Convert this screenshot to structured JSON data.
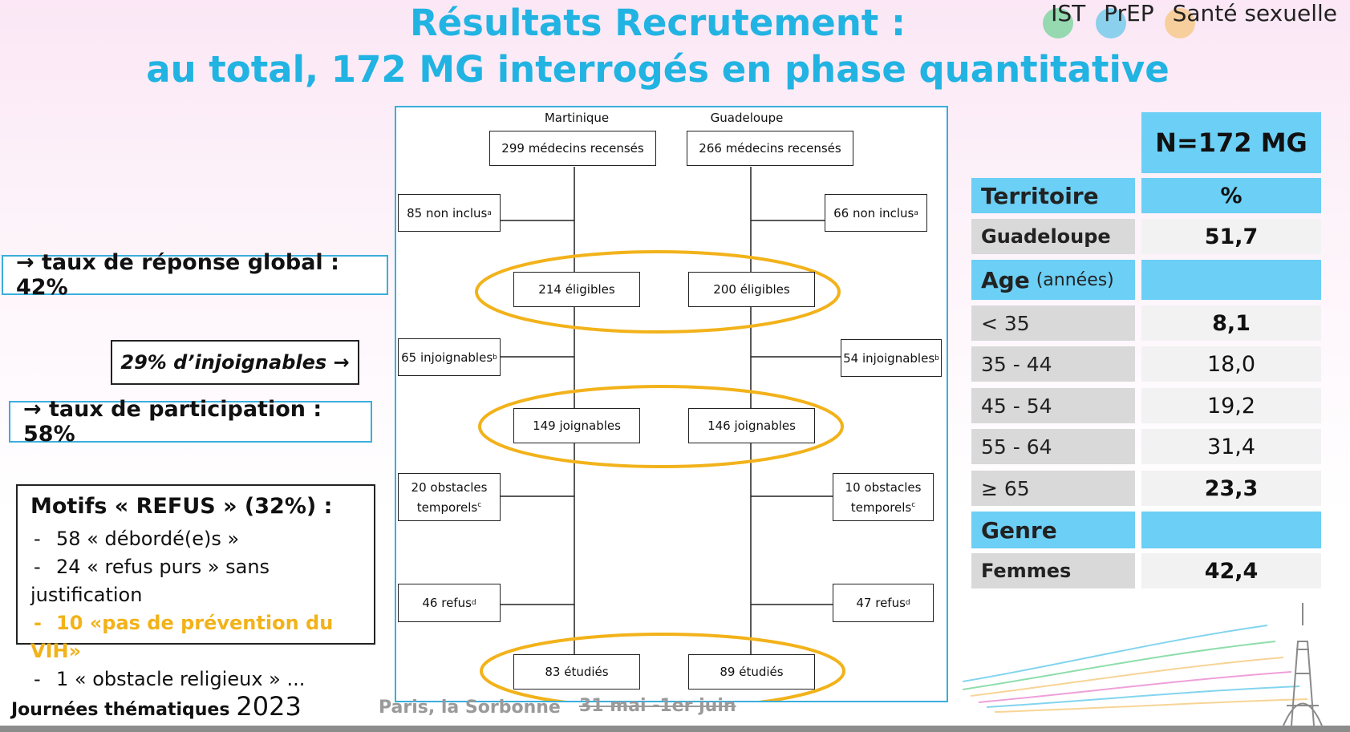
{
  "title": {
    "line1": "Résultats Recrutement :",
    "line2": "au total, 172 MG interrogés en phase quantitative"
  },
  "tags": [
    {
      "label": "IST",
      "color": "#5fd08a"
    },
    {
      "label": "PrEP",
      "color": "#4fc3e8"
    },
    {
      "label": "Santé sexuelle",
      "color": "#f5c26b"
    }
  ],
  "callouts": {
    "reponse": "→ taux de réponse global : 42%",
    "injoignables": "29% d’injoignables →",
    "participation": "→ taux de participation : 58%"
  },
  "refus": {
    "heading": "Motifs « REFUS »  (32%) :",
    "items": [
      "58 « débordé(e)s »",
      "24 « refus purs » sans justification",
      "10 «pas de prévention du VIH»",
      "1 « obstacle religieux » ..."
    ]
  },
  "flowchart": {
    "col_left": "Martinique",
    "col_right": "Guadeloupe",
    "left": {
      "recenses": "299 médecins recensés",
      "non_inclus": "85 non inclus",
      "eligibles": "214 éligibles",
      "injoignables": "65 injoignables",
      "joignables": "149 joignables",
      "obstacles_1": "20 obstacles",
      "obstacles_2": "temporels",
      "refus": "46 refus",
      "etudies": "83 étudiés"
    },
    "right": {
      "recenses": "266 médecins recensés",
      "non_inclus": "66 non inclus",
      "eligibles": "200 éligibles",
      "injoignables": "54 injoignables",
      "joignables": "146 joignables",
      "obstacles_1": "10 obstacles",
      "obstacles_2": "temporels",
      "refus": "47 refus",
      "etudies": "89 étudiés"
    },
    "sup": {
      "a": "a",
      "b": "b",
      "c": "c",
      "d": "d"
    },
    "highlight_color": "#f2b21a"
  },
  "table": {
    "header": "N=172 MG",
    "rows": [
      {
        "label": "Territoire",
        "value": "%"
      },
      {
        "label": "Guadeloupe",
        "value": "51,7"
      },
      {
        "label": "Age",
        "label_sub": "(années)",
        "value": ""
      },
      {
        "label": "< 35",
        "value": "8,1"
      },
      {
        "label": "35 - 44",
        "value": "18,0"
      },
      {
        "label": "45 - 54",
        "value": "19,2"
      },
      {
        "label": "55 - 64",
        "value": "31,4"
      },
      {
        "label": "≥ 65",
        "value": "23,3"
      },
      {
        "label": "Genre",
        "value": ""
      },
      {
        "label": "Femmes",
        "value": "42,4"
      }
    ],
    "accent": "#6ccff5"
  },
  "footer": {
    "event": "Journées thématiques",
    "year": "2023",
    "place": "Paris, la Sorbonne",
    "dates": "31 mai -1er juin"
  }
}
